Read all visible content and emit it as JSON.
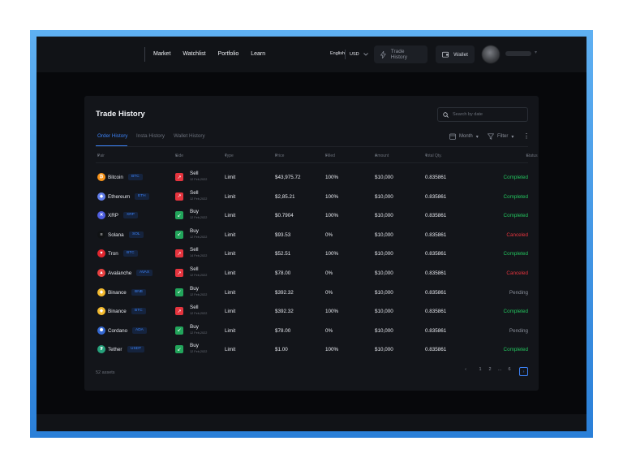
{
  "nav": {
    "items": [
      "Market",
      "Watchlist",
      "Portfolio",
      "Learn"
    ]
  },
  "lang": "English",
  "currency": "USD",
  "buttons": {
    "trade_history": "Trade History",
    "wallet": "Wallet"
  },
  "page_title": "Trade History",
  "search": {
    "placeholder": "Search by date"
  },
  "tabs": [
    "Order History",
    "Insta History",
    "Wallet History"
  ],
  "filters": {
    "period": "Month",
    "filter": "Filter"
  },
  "table": {
    "headers": [
      "Pair",
      "Side",
      "Type",
      "Price",
      "Filled",
      "Amount",
      "Total Qty.",
      "Status"
    ],
    "rows": [
      {
        "coin": "Bitcoin",
        "ticker": "BTC",
        "icon": "bitcoin-icon",
        "icon_glyph": "₿",
        "icon_color": "#f7931a",
        "side": "Sell",
        "date": "12 Feb,2022",
        "type": "Limit",
        "price": "$43,975.72",
        "filled": "100%",
        "amount": "$10,000",
        "qty": "0.835861",
        "status": "Completed"
      },
      {
        "coin": "Ethereum",
        "ticker": "ETH",
        "icon": "ethereum-icon",
        "icon_glyph": "◆",
        "icon_color": "#627eea",
        "side": "Sell",
        "date": "12 Feb,2022",
        "type": "Limit",
        "price": "$2,85.21",
        "filled": "100%",
        "amount": "$10,000",
        "qty": "0.835861",
        "status": "Completed"
      },
      {
        "coin": "XRP",
        "ticker": "XRP",
        "icon": "xrp-icon",
        "icon_glyph": "✕",
        "icon_color": "#4f5fe0",
        "side": "Buy",
        "date": "12 Feb,2022",
        "type": "Limit",
        "price": "$0.7904",
        "filled": "100%",
        "amount": "$10,000",
        "qty": "0.835861",
        "status": "Completed"
      },
      {
        "coin": "Solana",
        "ticker": "SOL",
        "icon": "solana-icon",
        "icon_glyph": "≡",
        "icon_color": "#101214",
        "side": "Buy",
        "date": "12 Feb,2022",
        "type": "Limit",
        "price": "$93.53",
        "filled": "0%",
        "amount": "$10,000",
        "qty": "0.835861",
        "status": "Canceled"
      },
      {
        "coin": "Tron",
        "ticker": "BTC",
        "icon": "tron-icon",
        "icon_glyph": "▼",
        "icon_color": "#e0262f",
        "side": "Sell",
        "date": "14 Feb,2022",
        "type": "Limit",
        "price": "$52.51",
        "filled": "100%",
        "amount": "$10,000",
        "qty": "0.835861",
        "status": "Completed"
      },
      {
        "coin": "Avalanche",
        "ticker": "AVAX",
        "icon": "avalanche-icon",
        "icon_glyph": "▲",
        "icon_color": "#e84142",
        "side": "Sell",
        "date": "12 Feb,2022",
        "type": "Limit",
        "price": "$78.00",
        "filled": "0%",
        "amount": "$10,000",
        "qty": "0.835861",
        "status": "Canceled"
      },
      {
        "coin": "Binance",
        "ticker": "BNB",
        "icon": "binance-icon",
        "icon_glyph": "◈",
        "icon_color": "#f3ba2f",
        "side": "Buy",
        "date": "12 Feb,2022",
        "type": "Limit",
        "price": "$392.32",
        "filled": "0%",
        "amount": "$10,000",
        "qty": "0.835861",
        "status": "Pending"
      },
      {
        "coin": "Binance",
        "ticker": "BTC",
        "icon": "binance-icon",
        "icon_glyph": "◈",
        "icon_color": "#f3ba2f",
        "side": "Sell",
        "date": "12 Feb,2022",
        "type": "Limit",
        "price": "$392.32",
        "filled": "100%",
        "amount": "$10,000",
        "qty": "0.835861",
        "status": "Completed"
      },
      {
        "coin": "Cordano",
        "ticker": "ADA",
        "icon": "cardano-icon",
        "icon_glyph": "✺",
        "icon_color": "#3468d1",
        "side": "Buy",
        "date": "12 Feb,2022",
        "type": "Limit",
        "price": "$78.00",
        "filled": "0%",
        "amount": "$10,000",
        "qty": "0.835861",
        "status": "Pending"
      },
      {
        "coin": "Tether",
        "ticker": "USDT",
        "icon": "tether-icon",
        "icon_glyph": "₮",
        "icon_color": "#26a17b",
        "side": "Buy",
        "date": "12 Feb,2022",
        "type": "Limit",
        "price": "$1.00",
        "filled": "100%",
        "amount": "$10,000",
        "qty": "0.835861",
        "status": "Completed"
      }
    ]
  },
  "colors": {
    "completed": "#23c45e",
    "canceled": "#e5343e",
    "pending": "#8b909b",
    "sell": "#e5343e",
    "buy": "#22a55b",
    "accent": "#3c82f6"
  },
  "footer": {
    "count": "52 assets"
  },
  "pagination": {
    "pages": [
      "1",
      "2",
      "...",
      "6"
    ],
    "current": "1"
  }
}
